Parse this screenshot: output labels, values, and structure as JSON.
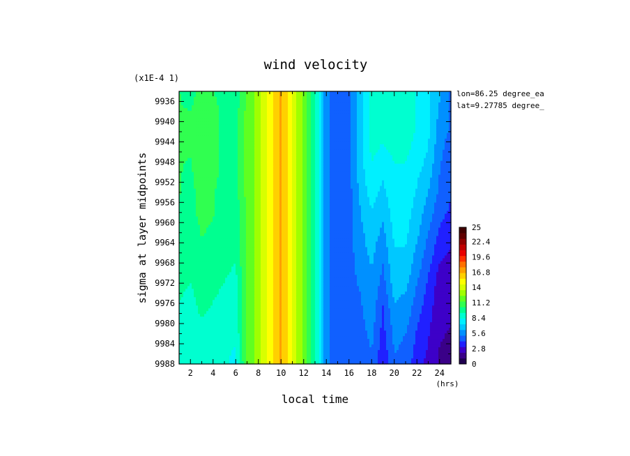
{
  "chart_data": {
    "type": "heatmap",
    "title": "wind velocity",
    "xlabel": "local time",
    "ylabel": "sigma at layer midpoints",
    "x_unit": "(hrs)",
    "y_scale_note": "(x1E-4 1)",
    "annotations": [
      "lon=86.25 degree_ea",
      "lat=9.27785 degree_"
    ],
    "x": [
      1,
      2,
      3,
      4,
      5,
      6,
      7,
      8,
      9,
      10,
      11,
      12,
      13,
      14,
      15,
      16,
      17,
      18,
      19,
      20,
      21,
      22,
      23,
      24,
      25
    ],
    "y": [
      9934,
      9938,
      9942,
      9946,
      9950,
      9954,
      9958,
      9962,
      9966,
      9970,
      9974,
      9978,
      9982,
      9986,
      9988
    ],
    "z": [
      [
        10.5,
        9.5,
        11.5,
        10.5,
        9.5,
        9.5,
        11.8,
        13.0,
        15.0,
        16.8,
        14.5,
        12.2,
        9.5,
        5.5,
        4.2,
        4.8,
        7.0,
        8.5,
        8.5,
        8.8,
        8.8,
        8.2,
        7.5,
        6.5,
        5.0
      ],
      [
        10.5,
        10.5,
        11.5,
        11.0,
        10.0,
        10.0,
        11.8,
        13.0,
        15.0,
        16.8,
        14.5,
        12.2,
        9.5,
        5.5,
        4.2,
        4.8,
        7.0,
        8.5,
        8.5,
        8.8,
        8.8,
        8.2,
        7.5,
        6.0,
        5.0
      ],
      [
        10.5,
        10.5,
        11.5,
        11.0,
        10.0,
        10.0,
        11.8,
        13.0,
        15.0,
        16.8,
        14.5,
        12.2,
        9.5,
        5.5,
        4.2,
        4.8,
        7.0,
        8.5,
        8.5,
        8.8,
        8.8,
        8.2,
        7.5,
        5.8,
        5.0
      ],
      [
        10.5,
        10.5,
        11.5,
        11.0,
        10.0,
        10.0,
        11.8,
        13.0,
        15.0,
        16.8,
        14.5,
        12.2,
        9.5,
        5.5,
        4.2,
        4.8,
        7.0,
        8.5,
        8.2,
        8.5,
        8.5,
        8.0,
        7.2,
        5.5,
        4.5
      ],
      [
        10.5,
        10.2,
        11.2,
        10.8,
        10.0,
        10.0,
        11.8,
        13.0,
        15.0,
        16.8,
        14.5,
        12.2,
        9.5,
        5.5,
        4.2,
        4.8,
        6.8,
        8.2,
        7.5,
        8.2,
        8.2,
        7.5,
        6.8,
        5.2,
        4.5
      ],
      [
        10.5,
        10.0,
        11.0,
        10.5,
        10.0,
        10.0,
        11.8,
        13.0,
        15.0,
        16.8,
        14.5,
        12.2,
        9.5,
        5.5,
        4.2,
        4.8,
        6.5,
        7.8,
        7.0,
        8.0,
        8.0,
        7.2,
        6.2,
        5.0,
        4.2
      ],
      [
        10.2,
        10.0,
        10.8,
        10.5,
        10.0,
        9.8,
        11.8,
        13.0,
        15.0,
        16.8,
        14.5,
        12.2,
        9.5,
        5.5,
        4.2,
        4.8,
        6.2,
        7.2,
        6.5,
        7.8,
        7.8,
        6.8,
        5.8,
        4.5,
        4.0
      ],
      [
        10.0,
        9.8,
        10.5,
        10.2,
        9.8,
        9.5,
        11.8,
        13.0,
        15.0,
        16.8,
        14.5,
        12.2,
        9.5,
        5.5,
        4.2,
        4.8,
        6.0,
        6.8,
        6.0,
        7.5,
        7.5,
        6.5,
        5.2,
        4.0,
        3.5
      ],
      [
        10.0,
        9.8,
        10.2,
        10.0,
        9.8,
        9.5,
        11.8,
        13.0,
        15.0,
        16.8,
        14.5,
        12.2,
        9.5,
        5.5,
        4.2,
        4.8,
        5.8,
        6.5,
        5.5,
        7.2,
        7.2,
        6.0,
        4.8,
        3.5,
        3.0
      ],
      [
        9.8,
        9.5,
        10.0,
        9.8,
        9.5,
        9.2,
        11.8,
        13.0,
        15.0,
        16.8,
        14.5,
        12.2,
        9.5,
        5.5,
        4.2,
        4.8,
        5.5,
        6.2,
        5.0,
        7.0,
        6.8,
        5.5,
        4.2,
        2.8,
        2.5
      ],
      [
        9.5,
        9.2,
        9.8,
        9.5,
        9.2,
        9.0,
        11.8,
        13.0,
        15.0,
        16.8,
        14.5,
        12.2,
        9.5,
        5.5,
        4.2,
        4.8,
        5.2,
        6.0,
        4.5,
        6.5,
        6.2,
        5.0,
        3.8,
        2.5,
        2.2
      ],
      [
        9.2,
        9.0,
        9.5,
        9.2,
        9.0,
        8.8,
        11.8,
        13.0,
        15.0,
        16.8,
        14.5,
        12.2,
        9.5,
        5.5,
        4.2,
        4.8,
        5.0,
        5.8,
        4.0,
        6.0,
        5.8,
        4.5,
        3.5,
        2.5,
        2.2
      ],
      [
        9.0,
        8.8,
        9.0,
        9.0,
        8.8,
        8.5,
        11.8,
        13.0,
        15.0,
        16.8,
        14.5,
        12.2,
        9.5,
        5.5,
        4.2,
        4.8,
        4.8,
        5.5,
        3.8,
        5.5,
        5.2,
        4.0,
        3.2,
        2.2,
        2.0
      ],
      [
        8.8,
        8.5,
        8.8,
        8.8,
        8.5,
        8.2,
        11.8,
        13.0,
        15.0,
        16.8,
        14.5,
        12.2,
        9.5,
        5.5,
        4.2,
        4.8,
        4.5,
        5.2,
        3.5,
        5.2,
        5.0,
        3.8,
        3.0,
        2.0,
        1.8
      ],
      [
        8.5,
        8.5,
        8.5,
        8.5,
        8.5,
        8.0,
        11.8,
        13.0,
        15.0,
        16.8,
        14.5,
        12.2,
        9.5,
        5.5,
        4.2,
        4.8,
        4.5,
        5.0,
        3.5,
        5.0,
        4.8,
        3.5,
        2.8,
        2.0,
        1.8
      ]
    ],
    "xlim": [
      1,
      25
    ],
    "ylim": [
      9934,
      9988
    ],
    "y_inverted": true,
    "x_ticks": [
      "2",
      "4",
      "6",
      "8",
      "10",
      "12",
      "14",
      "16",
      "18",
      "20",
      "22",
      "24"
    ],
    "y_ticks": [
      "9936",
      "9940",
      "9944",
      "9948",
      "9952",
      "9956",
      "9960",
      "9964",
      "9968",
      "9972",
      "9976",
      "9980",
      "9984",
      "9988"
    ],
    "colorbar": {
      "min": 0,
      "max": 25,
      "labels": [
        "25",
        "22.4",
        "19.6",
        "16.8",
        "14",
        "11.2",
        "8.4",
        "5.6",
        "2.8",
        "0"
      ],
      "colors": [
        "#200050",
        "#3a0088",
        "#3d00c8",
        "#2020ff",
        "#1060ff",
        "#0090ff",
        "#00c8ff",
        "#00f0ff",
        "#00ffd0",
        "#00ff90",
        "#30ff50",
        "#60ff20",
        "#a0ff00",
        "#d8ff00",
        "#ffff00",
        "#ffd000",
        "#ffa000",
        "#ff7000",
        "#ff3000",
        "#e80000",
        "#c00000",
        "#900000",
        "#600000",
        "#400000"
      ]
    }
  }
}
